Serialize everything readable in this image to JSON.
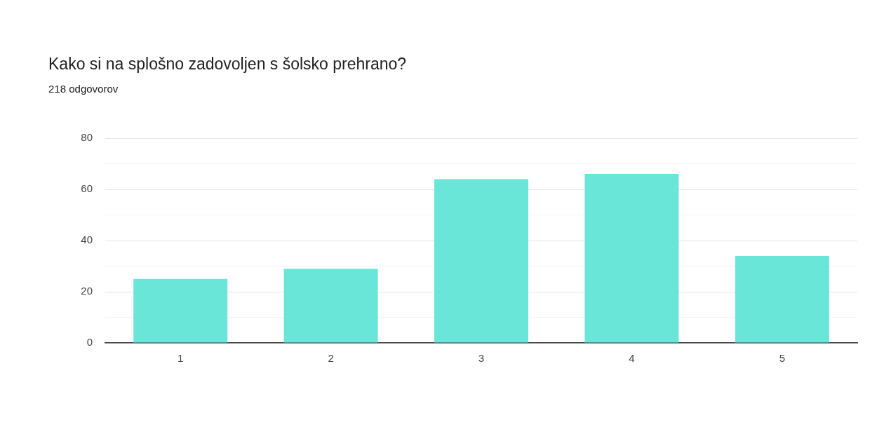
{
  "chart_data": {
    "type": "bar",
    "title": "Kako si na splošno zadovoljen s šolsko prehrano?",
    "subtitle": "218 odgovorov",
    "categories": [
      "1",
      "2",
      "3",
      "4",
      "5"
    ],
    "values": [
      25,
      29,
      64,
      66,
      34
    ],
    "color": "#6ae6d8",
    "ylim": [
      0,
      80
    ],
    "yticks": [
      0,
      {
        "value": 10,
        "label": null
      },
      20,
      {
        "value": 30,
        "label": null
      },
      40,
      {
        "value": 50,
        "label": null
      },
      60,
      {
        "value": 70,
        "label": null
      },
      80
    ],
    "grid": "y"
  }
}
